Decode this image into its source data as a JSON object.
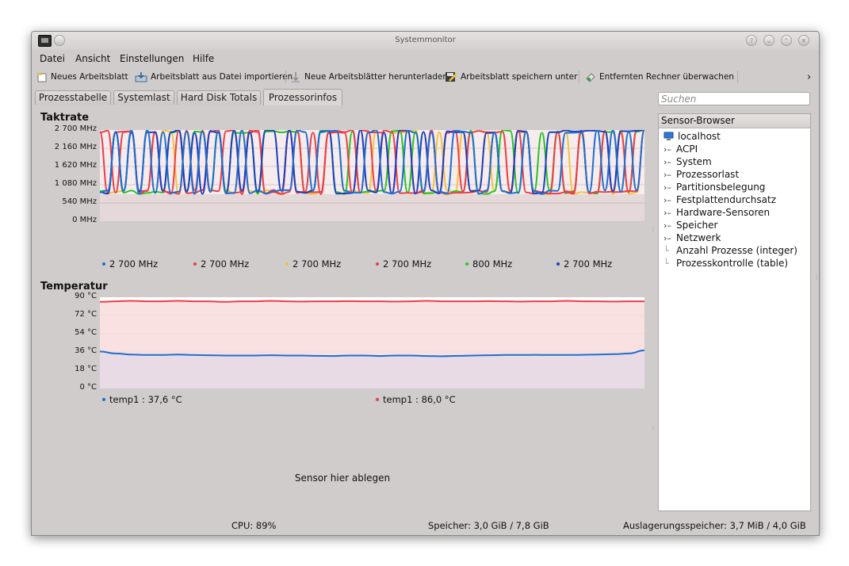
{
  "window": {
    "title": "Systemmonitor",
    "title_buttons": [
      "help-icon",
      "minimize-icon",
      "maximize-icon",
      "close-icon"
    ]
  },
  "menu": [
    {
      "label": "Datei"
    },
    {
      "label": "Ansicht"
    },
    {
      "label": "Einstellungen"
    },
    {
      "label": "Hilfe"
    }
  ],
  "toolbar": {
    "new_sheet": "Neues Arbeitsblatt",
    "import_sheet": "Arbeitsblatt aus Datei importieren",
    "download_sheets": "Neue Arbeitsblätter herunterladen",
    "save_sheet_as": "Arbeitsblatt speichern unter",
    "monitor_remote": "Entfernten Rechner überwachen",
    "overflow": "›"
  },
  "tabs": [
    {
      "label": "Prozesstabelle",
      "active": false
    },
    {
      "label": "Systemlast",
      "active": false
    },
    {
      "label": "Hard Disk Totals",
      "active": false
    },
    {
      "label": "Prozessorinfos",
      "active": true
    }
  ],
  "search": {
    "placeholder": "Suchen",
    "value": ""
  },
  "sensor_browser": {
    "header": "Sensor-Browser",
    "host": "localhost",
    "items": [
      {
        "label": "ACPI",
        "expandable": true
      },
      {
        "label": "System",
        "expandable": true
      },
      {
        "label": "Prozessorlast",
        "expandable": true
      },
      {
        "label": "Partitionsbelegung",
        "expandable": true
      },
      {
        "label": "Festplattendurchsatz",
        "expandable": true
      },
      {
        "label": "Hardware-Sensoren",
        "expandable": true
      },
      {
        "label": "Speicher",
        "expandable": true
      },
      {
        "label": "Netzwerk",
        "expandable": true
      },
      {
        "label": "Anzahl Prozesse (integer)",
        "expandable": false
      },
      {
        "label": "Prozesskontrolle (table)",
        "expandable": false
      }
    ]
  },
  "panels": {
    "clock": {
      "title": "Taktrate",
      "legend": [
        {
          "label": "2 700 MHz",
          "color": "#1e6fd0"
        },
        {
          "label": "2 700 MHz",
          "color": "#e8404a"
        },
        {
          "label": "2 700 MHz",
          "color": "#f3c33c"
        },
        {
          "label": "2 700 MHz",
          "color": "#e8404a"
        },
        {
          "label": "800 MHz",
          "color": "#28c428"
        },
        {
          "label": "2 700 MHz",
          "color": "#1c3fbf"
        }
      ]
    },
    "temperature": {
      "title": "Temperatur",
      "legend": [
        {
          "label": "temp1 : 37,6 °C",
          "color": "#1e6fd0"
        },
        {
          "label": "temp1 : 86,0 °C",
          "color": "#e8404a"
        }
      ]
    },
    "dropzone": "Sensor hier ablegen"
  },
  "chart_data": [
    {
      "type": "line",
      "title": "Taktrate",
      "y_ticks": [
        "0 MHz",
        "540 MHz",
        "1 080 MHz",
        "1 620 MHz",
        "2 160 MHz",
        "2 700 MHz"
      ],
      "ylim": [
        0,
        2700
      ],
      "grid": true,
      "legend_position": "bottom",
      "series": [
        {
          "name": "2 700 MHz",
          "color": "#1e6fd0"
        },
        {
          "name": "2 700 MHz",
          "color": "#e8404a"
        },
        {
          "name": "2 700 MHz",
          "color": "#f3c33c"
        },
        {
          "name": "2 700 MHz",
          "color": "#e8404a"
        },
        {
          "name": "800 MHz",
          "color": "#28c428"
        },
        {
          "name": "2 700 MHz",
          "color": "#1c3fbf"
        }
      ],
      "value_range": [
        800,
        2700
      ]
    },
    {
      "type": "line",
      "title": "Temperatur",
      "y_ticks": [
        "0 °C",
        "18 °C",
        "36 °C",
        "54 °C",
        "72 °C",
        "90 °C"
      ],
      "ylim": [
        0,
        90
      ],
      "grid": true,
      "legend_position": "bottom",
      "series": [
        {
          "name": "temp1 : 37,6 °C",
          "color": "#1e6fd0",
          "values": [
            36.5,
            34.5,
            33.5,
            33.0,
            33.0,
            33.5,
            33.0,
            32.8,
            32.5,
            32.5,
            32.5,
            32.8,
            32.5,
            32.5,
            32.2,
            32.0,
            32.5,
            32.5,
            32.0,
            32.5,
            32.5,
            32.0,
            31.8,
            32.2,
            32.5,
            32.8,
            33.0,
            33.0,
            33.2,
            33.0,
            33.0,
            33.2,
            33.5,
            33.8,
            34.5,
            37.6
          ]
        },
        {
          "name": "temp1 : 86,0 °C",
          "color": "#e8404a",
          "values": [
            85.5,
            86.0,
            86.5,
            86.0,
            86.0,
            86.5,
            86.0,
            86.0,
            85.5,
            86.0,
            86.0,
            86.5,
            86.0,
            85.8,
            86.0,
            86.0,
            86.2,
            86.0,
            86.0,
            85.8,
            86.0,
            86.5,
            86.0,
            86.0,
            86.0,
            86.2,
            86.0,
            85.8,
            86.0,
            86.0,
            86.5,
            86.0,
            86.0,
            85.8,
            86.0,
            86.0
          ]
        }
      ]
    }
  ],
  "status": {
    "cpu": "CPU: 89%",
    "memory": "Speicher: 3,0 GiB / 7,8 GiB",
    "swap": "Auslagerungsspeicher: 3,7 MiB / 4,0 GiB"
  }
}
